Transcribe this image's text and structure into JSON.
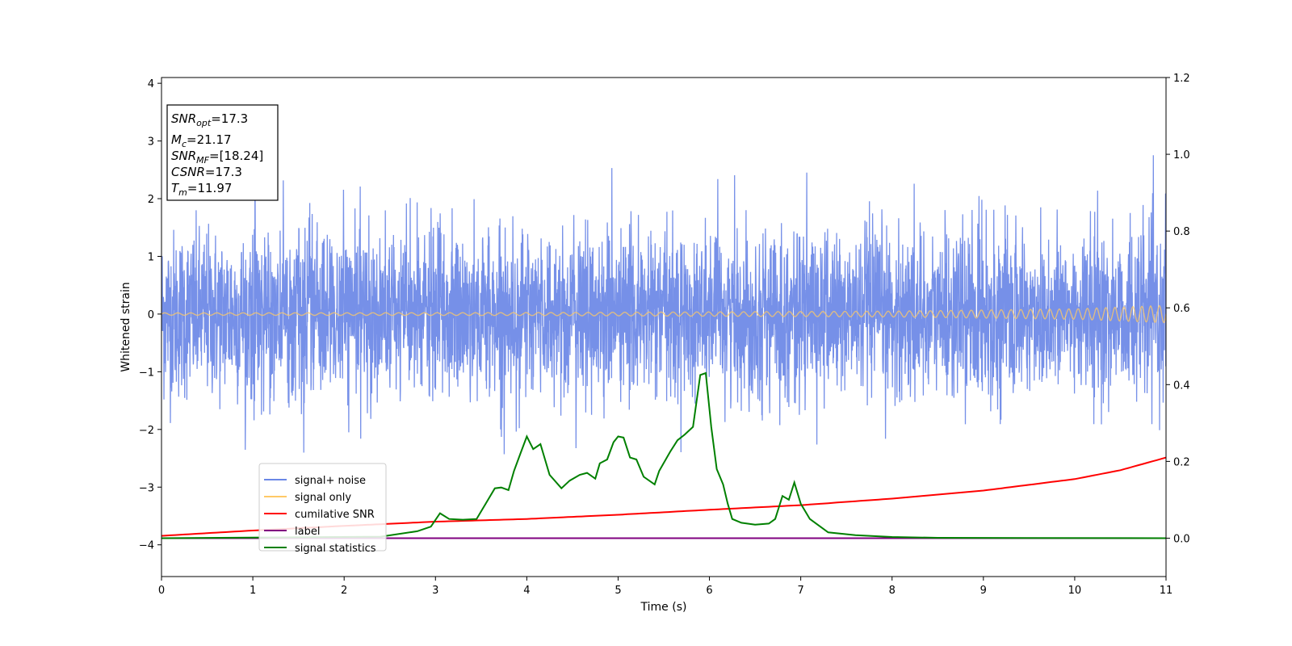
{
  "chart_data": {
    "type": "line",
    "xlabel": "Time (s)",
    "ylabel": "Whitened strain",
    "xlim": [
      0,
      11
    ],
    "ylim_left": [
      -4.55,
      4.1
    ],
    "ylim_right": [
      -0.1,
      1.2
    ],
    "x_ticks": [
      0,
      1,
      2,
      3,
      4,
      5,
      6,
      7,
      8,
      9,
      10,
      11
    ],
    "y_ticks_left": [
      4,
      3,
      2,
      1,
      0,
      -1,
      -2,
      -3,
      -4
    ],
    "y_ticks_right": [
      1.2,
      1.0,
      0.8,
      0.6,
      0.4,
      0.2,
      0.0
    ],
    "grid": false,
    "legend_position": "lower-left",
    "annotation": {
      "snr_opt": {
        "base": "SNR",
        "sub": "opt",
        "value": "=17.3"
      },
      "mc": {
        "base": "M",
        "sub": "c",
        "value": "=21.17"
      },
      "snr_mf": {
        "base": "SNR",
        "sub": "MF",
        "value": "=[18.24]"
      },
      "csnr": {
        "base": "CSNR",
        "value": "=17.3"
      },
      "tm": {
        "base": "T",
        "sub": "m",
        "value": "=11.97"
      }
    },
    "series": [
      {
        "name": "signal+ noise",
        "color": "#6a87e6",
        "axis": "left",
        "kind": "noise",
        "amplitude_envelope": [
          -2.5,
          2.9
        ]
      },
      {
        "name": "signal only",
        "color": "#ffc966",
        "axis": "left",
        "kind": "chirp",
        "x": [
          0,
          4,
          8,
          10,
          11
        ],
        "amplitude": [
          0.02,
          0.025,
          0.05,
          0.09,
          0.15
        ]
      },
      {
        "name": "cumilative SNR",
        "color": "#ff0000",
        "axis": "right",
        "x": [
          0,
          1,
          2,
          3,
          4,
          5,
          6,
          7,
          8,
          9,
          10,
          10.5,
          11
        ],
        "y": [
          0.006,
          0.02,
          0.032,
          0.043,
          0.05,
          0.061,
          0.074,
          0.086,
          0.103,
          0.124,
          0.154,
          0.177,
          0.21
        ]
      },
      {
        "name": "label",
        "color": "#800080",
        "axis": "right",
        "x": [
          0,
          11
        ],
        "y": [
          0.0,
          0.0
        ]
      },
      {
        "name": "signal statistics",
        "color": "#008000",
        "axis": "right",
        "x": [
          0,
          2.4,
          2.8,
          2.95,
          3.05,
          3.15,
          3.3,
          3.45,
          3.55,
          3.65,
          3.72,
          3.8,
          3.86,
          3.93,
          4.0,
          4.07,
          4.15,
          4.25,
          4.38,
          4.47,
          4.58,
          4.66,
          4.75,
          4.8,
          4.88,
          4.95,
          5.0,
          5.06,
          5.13,
          5.2,
          5.28,
          5.4,
          5.45,
          5.57,
          5.65,
          5.73,
          5.82,
          5.9,
          5.96,
          6.02,
          6.08,
          6.15,
          6.2,
          6.25,
          6.35,
          6.5,
          6.65,
          6.72,
          6.8,
          6.87,
          6.93,
          7.0,
          7.1,
          7.3,
          7.6,
          8.0,
          8.5,
          11
        ],
        "y": [
          0.0,
          0.004,
          0.018,
          0.03,
          0.065,
          0.05,
          0.048,
          0.05,
          0.09,
          0.13,
          0.132,
          0.125,
          0.175,
          0.22,
          0.265,
          0.232,
          0.245,
          0.165,
          0.13,
          0.15,
          0.165,
          0.17,
          0.155,
          0.195,
          0.205,
          0.25,
          0.265,
          0.262,
          0.21,
          0.205,
          0.16,
          0.14,
          0.175,
          0.225,
          0.255,
          0.27,
          0.29,
          0.425,
          0.43,
          0.29,
          0.18,
          0.14,
          0.09,
          0.05,
          0.04,
          0.035,
          0.038,
          0.05,
          0.11,
          0.1,
          0.145,
          0.09,
          0.05,
          0.015,
          0.008,
          0.003,
          0.001,
          0.0
        ]
      }
    ]
  }
}
